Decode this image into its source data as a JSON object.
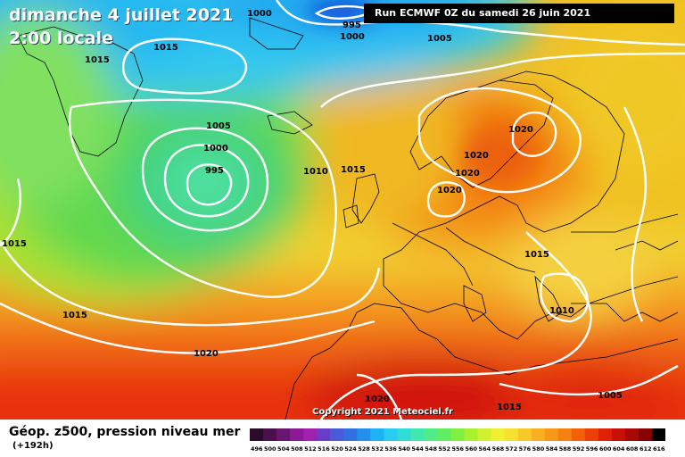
{
  "header": {
    "date": "dimanche 4 juillet 2021",
    "time": "2:00 locale",
    "run": "Run ECMWF 0Z du samedi 26 juin 2021"
  },
  "footer": {
    "title": "Géop. z500, pression niveau mer",
    "lead": "(+192h)",
    "copyright": "Copyright 2021 Meteociel.fr"
  },
  "pressure_labels": [
    "1000",
    "995",
    "1000",
    "1005",
    "1015",
    "1015",
    "1005",
    "1000",
    "995",
    "1010",
    "1015",
    "1020",
    "1020",
    "1020",
    "1020",
    "1015",
    "1015",
    "1010",
    "1015",
    "1020",
    "1020",
    "1015",
    "1005"
  ],
  "scale": {
    "values": [
      "496",
      "500",
      "504",
      "508",
      "512",
      "516",
      "520",
      "524",
      "528",
      "532",
      "536",
      "540",
      "544",
      "548",
      "552",
      "556",
      "560",
      "564",
      "568",
      "572",
      "576",
      "580",
      "584",
      "588",
      "592",
      "596",
      "600",
      "604",
      "608",
      "612",
      "616"
    ],
    "colors": [
      "#2a0b2a",
      "#4b0f4b",
      "#6a1570",
      "#8c1a96",
      "#a020b0",
      "#6a3cc8",
      "#4a5ad8",
      "#3070e0",
      "#2490ee",
      "#20b0f4",
      "#28ccf0",
      "#30dcd8",
      "#40e8b0",
      "#50ec88",
      "#60ee60",
      "#80f040",
      "#a8f030",
      "#d0f030",
      "#f0f030",
      "#f8e030",
      "#f8c828",
      "#f8b020",
      "#f89818",
      "#f88010",
      "#f46008",
      "#ec4008",
      "#e02008",
      "#c81008",
      "#a80808",
      "#880000",
      "#000000"
    ]
  }
}
